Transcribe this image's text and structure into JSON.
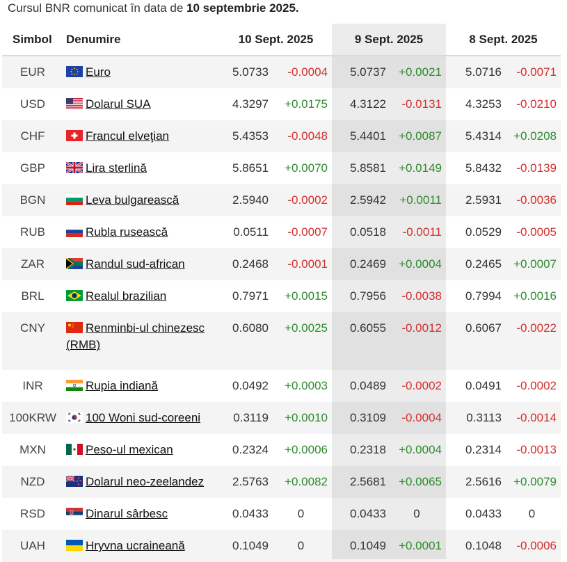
{
  "caption": {
    "prefix": "Cursul BNR comunicat în data de",
    "date": "10 septembrie 2025."
  },
  "headers": {
    "symbol": "Simbol",
    "name": "Denumire",
    "d1": "10 Sept. 2025",
    "d2": "9 Sept. 2025",
    "d3": "8 Sept. 2025"
  },
  "colors": {
    "positive": "#2e8b2e",
    "negative": "#d32f2f",
    "highlight_column": "#ececec"
  },
  "rows": [
    {
      "symbol": "EUR",
      "flag": "eu-flag-icon",
      "name": "Euro",
      "v1": "5.0733",
      "c1": "-0.0004",
      "v2": "5.0737",
      "c2": "+0.0021",
      "v3": "5.0716",
      "c3": "-0.0071"
    },
    {
      "symbol": "USD",
      "flag": "us-flag-icon",
      "name": "Dolarul SUA",
      "v1": "4.3297",
      "c1": "+0.0175",
      "v2": "4.3122",
      "c2": "-0.0131",
      "v3": "4.3253",
      "c3": "-0.0210"
    },
    {
      "symbol": "CHF",
      "flag": "ch-flag-icon",
      "name": "Francul elveţian",
      "v1": "5.4353",
      "c1": "-0.0048",
      "v2": "5.4401",
      "c2": "+0.0087",
      "v3": "5.4314",
      "c3": "+0.0208"
    },
    {
      "symbol": "GBP",
      "flag": "gb-flag-icon",
      "name": "Lira sterlină",
      "v1": "5.8651",
      "c1": "+0.0070",
      "v2": "5.8581",
      "c2": "+0.0149",
      "v3": "5.8432",
      "c3": "-0.0139"
    },
    {
      "symbol": "BGN",
      "flag": "bg-flag-icon",
      "name": "Leva bulgarească",
      "v1": "2.5940",
      "c1": "-0.0002",
      "v2": "2.5942",
      "c2": "+0.0011",
      "v3": "2.5931",
      "c3": "-0.0036"
    },
    {
      "symbol": "RUB",
      "flag": "ru-flag-icon",
      "name": "Rubla rusească",
      "v1": "0.0511",
      "c1": "-0.0007",
      "v2": "0.0518",
      "c2": "-0.0011",
      "v3": "0.0529",
      "c3": "-0.0005"
    },
    {
      "symbol": "ZAR",
      "flag": "za-flag-icon",
      "name": "Randul sud-african",
      "v1": "0.2468",
      "c1": "-0.0001",
      "v2": "0.2469",
      "c2": "+0.0004",
      "v3": "0.2465",
      "c3": "+0.0007"
    },
    {
      "symbol": "BRL",
      "flag": "br-flag-icon",
      "name": "Realul brazilian",
      "v1": "0.7971",
      "c1": "+0.0015",
      "v2": "0.7956",
      "c2": "-0.0038",
      "v3": "0.7994",
      "c3": "+0.0016"
    },
    {
      "symbol": "CNY",
      "flag": "cn-flag-icon",
      "name": "Renminbi-ul chinezesc (RMB)",
      "v1": "0.6080",
      "c1": "+0.0025",
      "v2": "0.6055",
      "c2": "-0.0012",
      "v3": "0.6067",
      "c3": "-0.0022"
    },
    {
      "symbol": "INR",
      "flag": "in-flag-icon",
      "name": "Rupia indiană",
      "v1": "0.0492",
      "c1": "+0.0003",
      "v2": "0.0489",
      "c2": "-0.0002",
      "v3": "0.0491",
      "c3": "-0.0002"
    },
    {
      "symbol": "100KRW",
      "flag": "kr-flag-icon",
      "name": "100 Woni sud-coreeni",
      "v1": "0.3119",
      "c1": "+0.0010",
      "v2": "0.3109",
      "c2": "-0.0004",
      "v3": "0.3113",
      "c3": "-0.0014"
    },
    {
      "symbol": "MXN",
      "flag": "mx-flag-icon",
      "name": "Peso-ul mexican",
      "v1": "0.2324",
      "c1": "+0.0006",
      "v2": "0.2318",
      "c2": "+0.0004",
      "v3": "0.2314",
      "c3": "-0.0013"
    },
    {
      "symbol": "NZD",
      "flag": "nz-flag-icon",
      "name": "Dolarul neo-zeelandez",
      "v1": "2.5763",
      "c1": "+0.0082",
      "v2": "2.5681",
      "c2": "+0.0065",
      "v3": "2.5616",
      "c3": "+0.0079"
    },
    {
      "symbol": "RSD",
      "flag": "rs-flag-icon",
      "name": "Dinarul sârbesc",
      "v1": "0.0433",
      "c1": "0",
      "v2": "0.0433",
      "c2": "0",
      "v3": "0.0433",
      "c3": "0"
    },
    {
      "symbol": "UAH",
      "flag": "ua-flag-icon",
      "name": "Hryvna ucraineană",
      "v1": "0.1049",
      "c1": "0",
      "v2": "0.1049",
      "c2": "+0.0001",
      "v3": "0.1048",
      "c3": "-0.0006"
    }
  ]
}
